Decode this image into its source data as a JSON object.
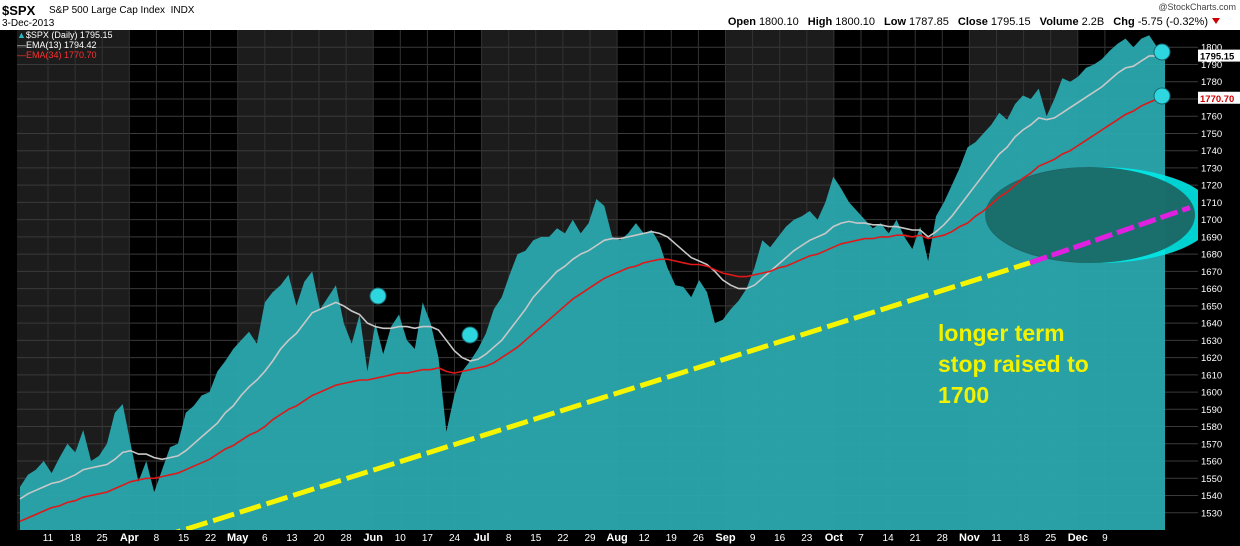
{
  "header": {
    "symbol": "$SPX",
    "name": "S&P 500 Large Cap Index",
    "exchange": "INDX",
    "date": "3-Dec-2013",
    "source": "@StockCharts.com",
    "open_label": "Open",
    "open_value": "1800.10",
    "high_label": "High",
    "high_value": "1800.10",
    "low_label": "Low",
    "low_value": "1787.85",
    "close_label": "Close",
    "close_value": "1795.15",
    "volume_label": "Volume",
    "volume_value": "2.2B",
    "chg_label": "Chg",
    "chg_value": "-5.75 (-0.32%)"
  },
  "legend": {
    "price": "$SPX (Daily) 1795.15",
    "ema13": "EMA(13) 1794.42",
    "ema34": "EMA(34) 1770.70"
  },
  "annotation": [
    "longer term",
    "stop raised to",
    "1700"
  ],
  "colors": {
    "area": "#2aa6ae",
    "ema13": "#c8c8c8",
    "ema34": "#e01818",
    "trend": "#f5f500",
    "trend_ext": "#e020e0",
    "stop_zone": "#00e8e8",
    "stop_zone_inner": "#1e5a58"
  },
  "chart_data": {
    "type": "area",
    "ylim": [
      1520,
      1810
    ],
    "y_ticks": [
      1530,
      1540,
      1550,
      1560,
      1570,
      1580,
      1590,
      1600,
      1610,
      1620,
      1630,
      1640,
      1650,
      1660,
      1670,
      1680,
      1690,
      1700,
      1710,
      1720,
      1730,
      1740,
      1750,
      1760,
      1770,
      1780,
      1790,
      1800
    ],
    "x_ticks": [
      "11",
      "18",
      "25",
      "Apr",
      "8",
      "15",
      "22",
      "May",
      "6",
      "13",
      "20",
      "28",
      "Jun",
      "10",
      "17",
      "24",
      "Jul",
      "8",
      "15",
      "22",
      "29",
      "Aug",
      "12",
      "19",
      "26",
      "Sep",
      "9",
      "16",
      "23",
      "Oct",
      "7",
      "14",
      "21",
      "28",
      "Nov",
      "11",
      "18",
      "25",
      "Dec",
      "9"
    ],
    "x_tick_bold": [
      "Apr",
      "May",
      "Jun",
      "Jul",
      "Aug",
      "Sep",
      "Oct",
      "Nov",
      "Dec"
    ],
    "series": [
      {
        "name": "$SPX (Daily)",
        "values": [
          1545,
          1552,
          1555,
          1560,
          1553,
          1562,
          1570,
          1565,
          1578,
          1560,
          1563,
          1570,
          1588,
          1593,
          1570,
          1548,
          1560,
          1542,
          1555,
          1568,
          1570,
          1588,
          1592,
          1598,
          1600,
          1612,
          1618,
          1625,
          1630,
          1635,
          1628,
          1652,
          1658,
          1662,
          1668,
          1650,
          1664,
          1670,
          1648,
          1655,
          1662,
          1640,
          1628,
          1645,
          1612,
          1640,
          1622,
          1638,
          1645,
          1630,
          1625,
          1652,
          1640,
          1620,
          1577,
          1598,
          1612,
          1618,
          1625,
          1634,
          1648,
          1655,
          1668,
          1680,
          1682,
          1688,
          1690,
          1690,
          1695,
          1692,
          1700,
          1692,
          1698,
          1712,
          1708,
          1690,
          1688,
          1692,
          1698,
          1692,
          1694,
          1686,
          1672,
          1662,
          1661,
          1655,
          1665,
          1658,
          1640,
          1642,
          1648,
          1653,
          1660,
          1672,
          1688,
          1684,
          1690,
          1696,
          1700,
          1702,
          1705,
          1700,
          1710,
          1725,
          1718,
          1710,
          1705,
          1700,
          1695,
          1698,
          1692,
          1700,
          1690,
          1683,
          1696,
          1676,
          1702,
          1710,
          1720,
          1730,
          1742,
          1745,
          1750,
          1755,
          1762,
          1758,
          1767,
          1772,
          1770,
          1776,
          1760,
          1770,
          1782,
          1780,
          1783,
          1788,
          1790,
          1793,
          1798,
          1802,
          1805,
          1800,
          1805,
          1807,
          1800,
          1795
        ]
      },
      {
        "name": "EMA(13)",
        "values": [
          1538,
          1541,
          1543,
          1545,
          1547,
          1548,
          1550,
          1552,
          1555,
          1556,
          1557,
          1558,
          1561,
          1565,
          1566,
          1564,
          1564,
          1562,
          1561,
          1562,
          1563,
          1566,
          1570,
          1574,
          1578,
          1582,
          1588,
          1592,
          1598,
          1603,
          1607,
          1612,
          1618,
          1625,
          1630,
          1634,
          1640,
          1646,
          1648,
          1650,
          1652,
          1650,
          1647,
          1645,
          1640,
          1638,
          1637,
          1637,
          1638,
          1638,
          1637,
          1638,
          1638,
          1636,
          1630,
          1624,
          1620,
          1618,
          1619,
          1622,
          1626,
          1630,
          1636,
          1642,
          1648,
          1655,
          1660,
          1665,
          1670,
          1673,
          1677,
          1680,
          1682,
          1685,
          1688,
          1689,
          1689,
          1690,
          1691,
          1692,
          1693,
          1692,
          1690,
          1686,
          1682,
          1678,
          1676,
          1674,
          1670,
          1665,
          1662,
          1660,
          1660,
          1662,
          1666,
          1670,
          1674,
          1678,
          1682,
          1685,
          1688,
          1690,
          1692,
          1696,
          1698,
          1699,
          1698,
          1698,
          1697,
          1697,
          1696,
          1696,
          1695,
          1694,
          1694,
          1690,
          1693,
          1697,
          1702,
          1708,
          1714,
          1720,
          1726,
          1732,
          1738,
          1742,
          1748,
          1752,
          1755,
          1759,
          1758,
          1759,
          1762,
          1765,
          1768,
          1771,
          1774,
          1777,
          1781,
          1785,
          1788,
          1789,
          1792,
          1795,
          1795,
          1794
        ]
      },
      {
        "name": "EMA(34)",
        "values": [
          1525,
          1527,
          1529,
          1531,
          1533,
          1534,
          1536,
          1537,
          1539,
          1540,
          1541,
          1542,
          1544,
          1546,
          1548,
          1549,
          1550,
          1550,
          1551,
          1552,
          1553,
          1555,
          1557,
          1559,
          1561,
          1564,
          1567,
          1569,
          1572,
          1575,
          1577,
          1580,
          1584,
          1587,
          1590,
          1592,
          1595,
          1598,
          1600,
          1602,
          1604,
          1605,
          1606,
          1607,
          1607,
          1608,
          1609,
          1610,
          1611,
          1611,
          1612,
          1613,
          1613,
          1614,
          1612,
          1611,
          1612,
          1613,
          1614,
          1615,
          1617,
          1620,
          1623,
          1626,
          1630,
          1634,
          1638,
          1642,
          1646,
          1650,
          1654,
          1657,
          1660,
          1663,
          1666,
          1668,
          1670,
          1672,
          1673,
          1675,
          1676,
          1677,
          1677,
          1676,
          1675,
          1674,
          1674,
          1673,
          1671,
          1669,
          1668,
          1667,
          1667,
          1668,
          1669,
          1670,
          1672,
          1673,
          1675,
          1677,
          1679,
          1680,
          1682,
          1684,
          1686,
          1687,
          1688,
          1689,
          1689,
          1690,
          1690,
          1691,
          1691,
          1690,
          1691,
          1689,
          1690,
          1691,
          1693,
          1696,
          1698,
          1702,
          1705,
          1709,
          1713,
          1716,
          1720,
          1724,
          1727,
          1731,
          1733,
          1735,
          1738,
          1740,
          1743,
          1746,
          1749,
          1752,
          1755,
          1758,
          1761,
          1763,
          1766,
          1768,
          1770,
          1771
        ]
      }
    ],
    "trendline": {
      "from": [
        "Mar 8",
        1497
      ],
      "to": [
        "Nov 1",
        1675
      ]
    },
    "trendline_extension": {
      "from": [
        "Nov 1",
        1675
      ],
      "to": [
        "Dec 9",
        1705
      ]
    },
    "last_values": {
      "price": "1795.15",
      "ema34": "1770.70"
    }
  }
}
